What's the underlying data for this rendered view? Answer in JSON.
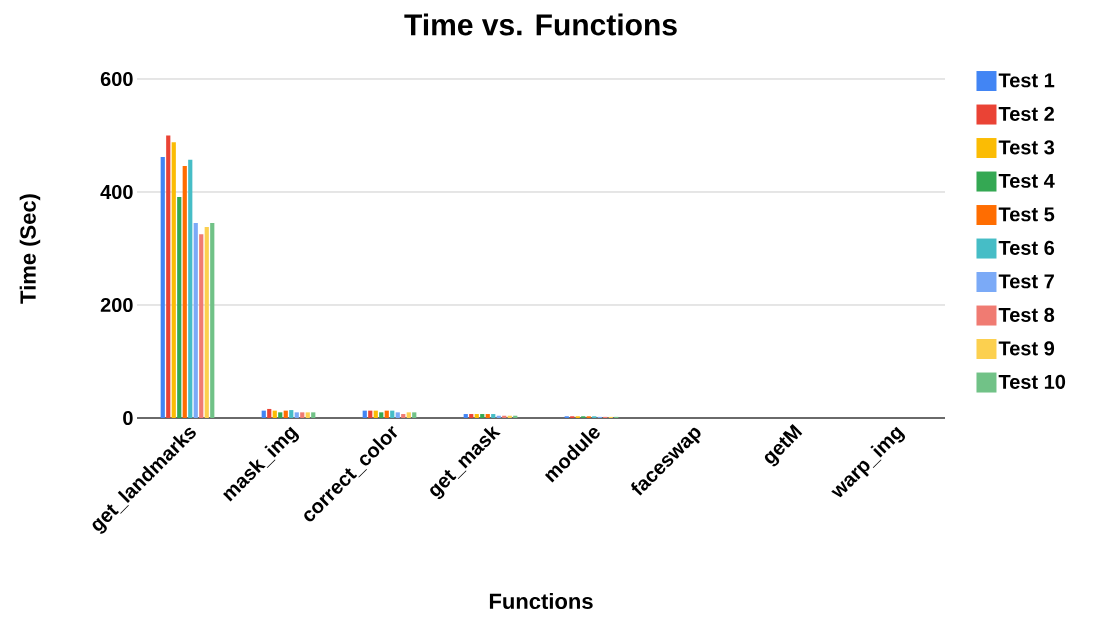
{
  "chart_data": {
    "type": "bar",
    "title": "Time vs. Functions",
    "xlabel": "Functions",
    "ylabel": "Time (Sec)",
    "categories": [
      "get_landmarks",
      "mask_img",
      "correct_color",
      "get_mask",
      "module",
      "faceswap",
      "getM",
      "warp_img"
    ],
    "series": [
      {
        "name": "Test 1",
        "color": "#4285f4",
        "values": [
          462,
          13,
          13,
          7,
          3,
          0,
          0,
          0
        ]
      },
      {
        "name": "Test 2",
        "color": "#ea4335",
        "values": [
          500,
          16,
          13,
          7,
          3,
          0,
          0,
          0
        ]
      },
      {
        "name": "Test 3",
        "color": "#fbbc04",
        "values": [
          488,
          13,
          13,
          7,
          3,
          0,
          0,
          0
        ]
      },
      {
        "name": "Test 4",
        "color": "#34a853",
        "values": [
          391,
          10,
          10,
          7,
          3,
          0,
          0,
          0
        ]
      },
      {
        "name": "Test 5",
        "color": "#ff6d01",
        "values": [
          446,
          13,
          13,
          7,
          3,
          0,
          0,
          0
        ]
      },
      {
        "name": "Test 6",
        "color": "#46bdc6",
        "values": [
          457,
          14,
          13,
          7,
          3,
          0,
          0,
          0
        ]
      },
      {
        "name": "Test 7",
        "color": "#7baaf7",
        "values": [
          345,
          10,
          10,
          4,
          2,
          0,
          0,
          0
        ]
      },
      {
        "name": "Test 8",
        "color": "#f07b72",
        "values": [
          325,
          10,
          7,
          4,
          2,
          0,
          0,
          0
        ]
      },
      {
        "name": "Test 9",
        "color": "#fcd04f",
        "values": [
          338,
          10,
          10,
          4,
          2,
          0,
          0,
          0
        ]
      },
      {
        "name": "Test 10",
        "color": "#71c287",
        "values": [
          345,
          10,
          10,
          4,
          2,
          0,
          0,
          0
        ]
      }
    ],
    "ylim": [
      0,
      600
    ],
    "yticks": [
      0,
      200,
      400,
      600
    ],
    "grid": "y",
    "legend": "right"
  }
}
